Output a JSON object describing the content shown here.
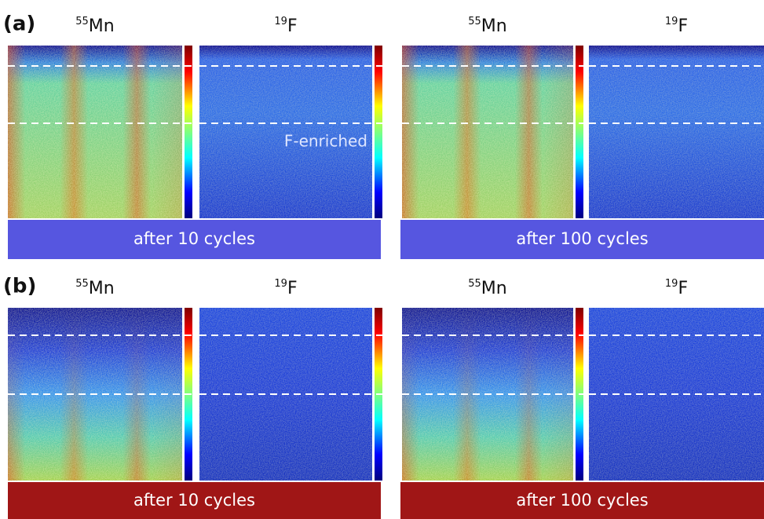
{
  "panels": [
    {
      "label": "(a)",
      "annotation": "F-enriched",
      "groups": [
        {
          "caption": "after 10 cycles",
          "maps": [
            {
              "mass": "55",
              "element": "Mn"
            },
            {
              "mass": "19",
              "element": "F"
            }
          ]
        },
        {
          "caption": "after 100 cycles",
          "maps": [
            {
              "mass": "55",
              "element": "Mn"
            },
            {
              "mass": "19",
              "element": "F"
            }
          ]
        }
      ]
    },
    {
      "label": "(b)",
      "groups": [
        {
          "caption": "after 10 cycles",
          "maps": [
            {
              "mass": "55",
              "element": "Mn"
            },
            {
              "mass": "19",
              "element": "F"
            }
          ]
        },
        {
          "caption": "after 100 cycles",
          "maps": [
            {
              "mass": "55",
              "element": "Mn"
            },
            {
              "mass": "19",
              "element": "F"
            }
          ]
        }
      ]
    }
  ]
}
